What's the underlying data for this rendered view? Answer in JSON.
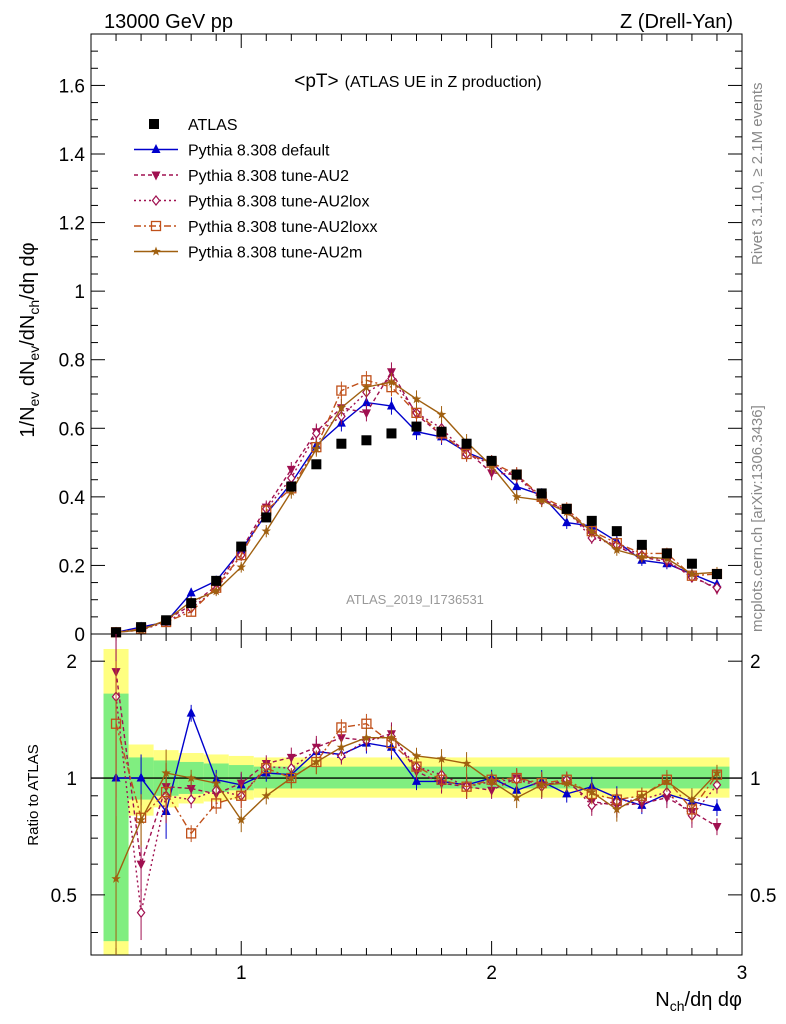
{
  "header": {
    "left": "13000 GeV pp",
    "right": "Z (Drell-Yan)"
  },
  "side": {
    "rivet": "Rivet 3.1.10, ≥ 2.1M events",
    "mcplots": "mcplots.cern.ch [arXiv:1306.3436]"
  },
  "chart_data": {
    "type": "line",
    "title_main": "<pT>",
    "title_sub": "(ATLAS UE in Z production)",
    "watermark": "ATLAS_2019_I1736531",
    "ylabel": "1/N",
    "ylabel_sub_ev": "ev",
    "ylabel_mid": " dN",
    "ylabel_sub_ev2": "ev",
    "ylabel_mid2": "/dN",
    "ylabel_sub_ch": "ch",
    "ylabel_tail": "/dη dφ",
    "xlabel": "N",
    "xlabel_sub": "ch",
    "xlabel_tail": "/dη dφ",
    "ratio_ylabel": "Ratio to ATLAS",
    "xlim": [
      0.4,
      3.0
    ],
    "ylim": [
      0.0,
      1.75
    ],
    "ratio_ylim": [
      0.35,
      2.35
    ],
    "x_ticks": [
      {
        "v": 1,
        "label": "1"
      },
      {
        "v": 2,
        "label": "2"
      },
      {
        "v": 3,
        "label": "3"
      }
    ],
    "y_ticks": [
      {
        "v": 0,
        "label": "0"
      },
      {
        "v": 0.2,
        "label": "0.2"
      },
      {
        "v": 0.4,
        "label": "0.4"
      },
      {
        "v": 0.6,
        "label": "0.6"
      },
      {
        "v": 0.8,
        "label": "0.8"
      },
      {
        "v": 1.0,
        "label": "1"
      },
      {
        "v": 1.2,
        "label": "1.2"
      },
      {
        "v": 1.4,
        "label": "1.4"
      },
      {
        "v": 1.6,
        "label": "1.6"
      }
    ],
    "ratio_ticks": [
      {
        "v": 0.5,
        "label": "0.5"
      },
      {
        "v": 1,
        "label": "1"
      },
      {
        "v": 2,
        "label": "2"
      }
    ],
    "x": [
      0.5,
      0.6,
      0.7,
      0.8,
      0.9,
      1.0,
      1.1,
      1.2,
      1.3,
      1.4,
      1.5,
      1.6,
      1.7,
      1.8,
      1.9,
      2.0,
      2.1,
      2.2,
      2.3,
      2.4,
      2.5,
      2.6,
      2.7,
      2.8,
      2.9
    ],
    "band_bins": [
      {
        "x0": 0.45,
        "x1": 0.55,
        "g": [
          0.38,
          1.65
        ],
        "y": [
          0.35,
          2.15
        ]
      },
      {
        "x0": 0.55,
        "x1": 0.65,
        "g": [
          0.88,
          1.13
        ],
        "y": [
          0.8,
          1.22
        ]
      },
      {
        "x0": 0.65,
        "x1": 0.75,
        "g": [
          0.9,
          1.11
        ],
        "y": [
          0.84,
          1.18
        ]
      },
      {
        "x0": 0.75,
        "x1": 0.85,
        "g": [
          0.91,
          1.1
        ],
        "y": [
          0.86,
          1.16
        ]
      },
      {
        "x0": 0.85,
        "x1": 0.95,
        "g": [
          0.92,
          1.09
        ],
        "y": [
          0.87,
          1.15
        ]
      },
      {
        "x0": 0.95,
        "x1": 1.05,
        "g": [
          0.93,
          1.08
        ],
        "y": [
          0.88,
          1.14
        ]
      },
      {
        "x0": 1.05,
        "x1": 2.95,
        "g": [
          0.94,
          1.07
        ],
        "y": [
          0.89,
          1.13
        ]
      }
    ],
    "atlas": [
      0.005,
      0.02,
      0.04,
      0.09,
      0.155,
      0.255,
      0.34,
      0.43,
      0.495,
      0.555,
      0.565,
      0.585,
      0.605,
      0.59,
      0.555,
      0.505,
      0.465,
      0.41,
      0.365,
      0.33,
      0.3,
      0.26,
      0.235,
      0.205,
      0.175
    ],
    "series": [
      {
        "name": "ATLAS",
        "kind": "data",
        "color": "#000000"
      },
      {
        "name": "Pythia 8.308 default",
        "color": "#0000cc",
        "dash": "",
        "marker": "tri-up",
        "values": [
          0.005,
          0.02,
          0.035,
          0.12,
          0.155,
          0.245,
          0.35,
          0.44,
          0.55,
          0.615,
          0.675,
          0.665,
          0.59,
          0.575,
          0.53,
          0.5,
          0.43,
          0.405,
          0.325,
          0.315,
          0.27,
          0.215,
          0.205,
          0.175,
          0.145
        ],
        "ratio": [
          1.0,
          1.0,
          0.82,
          1.47,
          0.99,
          0.96,
          1.03,
          1.02,
          1.17,
          1.15,
          1.23,
          1.2,
          0.98,
          0.98,
          0.96,
          1.0,
          0.93,
          0.98,
          0.91,
          0.95,
          0.89,
          0.85,
          0.91,
          0.87,
          0.84
        ]
      },
      {
        "name": "Pythia 8.308 tune-AU2",
        "color": "#a01050",
        "dash": "4,3",
        "marker": "tri-down",
        "values": [
          0.005,
          0.012,
          0.04,
          0.085,
          0.14,
          0.245,
          0.37,
          0.48,
          0.59,
          0.66,
          0.645,
          0.765,
          0.64,
          0.58,
          0.535,
          0.47,
          0.465,
          0.395,
          0.36,
          0.29,
          0.255,
          0.225,
          0.21,
          0.17,
          0.13
        ],
        "ratio": [
          1.88,
          0.6,
          0.95,
          0.94,
          0.91,
          0.97,
          1.09,
          1.13,
          1.2,
          1.27,
          1.25,
          1.3,
          1.04,
          0.97,
          0.95,
          0.93,
          1.0,
          0.96,
          0.98,
          0.87,
          0.85,
          0.86,
          0.89,
          0.82,
          0.75
        ]
      },
      {
        "name": "Pythia 8.308 tune-AU2lox",
        "color": "#a01050",
        "dash": "2,3",
        "marker": "diamond",
        "values": [
          0.005,
          0.011,
          0.035,
          0.075,
          0.13,
          0.23,
          0.365,
          0.455,
          0.585,
          0.635,
          0.705,
          0.745,
          0.645,
          0.6,
          0.525,
          0.495,
          0.46,
          0.39,
          0.36,
          0.28,
          0.26,
          0.23,
          0.215,
          0.165,
          0.135
        ],
        "ratio": [
          1.62,
          0.45,
          0.9,
          0.88,
          0.93,
          0.9,
          1.07,
          1.06,
          1.18,
          1.14,
          1.25,
          1.28,
          1.07,
          1.02,
          0.95,
          0.98,
          0.99,
          0.95,
          0.99,
          0.85,
          0.87,
          0.88,
          0.92,
          0.8,
          0.96
        ]
      },
      {
        "name": "Pythia 8.308 tune-AU2loxx",
        "color": "#c0501a",
        "dash": "7,3,2,3",
        "marker": "square-open",
        "values": [
          0.005,
          0.015,
          0.035,
          0.065,
          0.135,
          0.23,
          0.36,
          0.425,
          0.545,
          0.71,
          0.74,
          0.72,
          0.645,
          0.585,
          0.525,
          0.5,
          0.465,
          0.4,
          0.365,
          0.3,
          0.265,
          0.235,
          0.235,
          0.17,
          0.175
        ],
        "ratio": [
          1.38,
          0.79,
          0.92,
          0.72,
          0.86,
          0.9,
          1.06,
          1.0,
          1.1,
          1.35,
          1.38,
          1.23,
          1.07,
          0.99,
          0.95,
          0.99,
          1.0,
          0.97,
          0.99,
          0.91,
          0.88,
          0.9,
          0.99,
          0.83,
          1.02
        ]
      },
      {
        "name": "Pythia 8.308 tune-AU2m",
        "color": "#a06010",
        "dash": "",
        "marker": "star",
        "values": [
          0.005,
          0.012,
          0.04,
          0.095,
          0.125,
          0.195,
          0.3,
          0.415,
          0.54,
          0.66,
          0.72,
          0.735,
          0.685,
          0.64,
          0.56,
          0.49,
          0.4,
          0.39,
          0.355,
          0.3,
          0.245,
          0.225,
          0.22,
          0.175,
          0.18
        ],
        "ratio": [
          0.55,
          0.78,
          1.03,
          1.0,
          0.97,
          0.78,
          0.9,
          1.0,
          1.1,
          1.2,
          1.27,
          1.27,
          1.14,
          1.12,
          1.09,
          0.98,
          0.89,
          0.96,
          0.97,
          0.92,
          0.83,
          0.9,
          0.98,
          0.88,
          1.03
        ]
      }
    ]
  }
}
